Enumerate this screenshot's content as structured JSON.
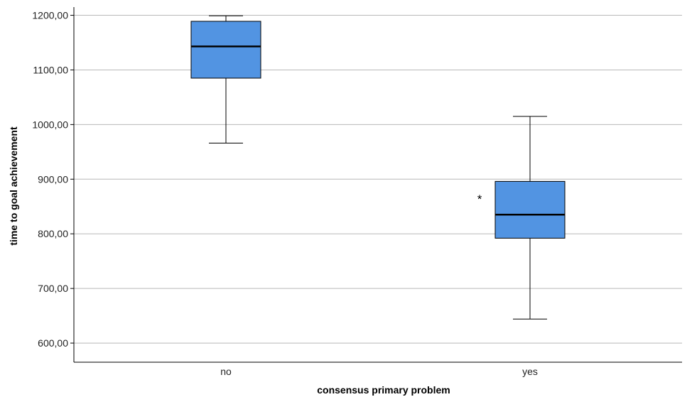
{
  "chart_data": {
    "type": "boxplot",
    "title": "",
    "xlabel": "consensus primary problem",
    "ylabel": "time to goal achievement",
    "ylim": [
      565,
      1215
    ],
    "yticks": [
      600,
      700,
      800,
      900,
      1000,
      1100,
      1200
    ],
    "ytick_labels": [
      "600,00",
      "700,00",
      "800,00",
      "900,00",
      "1000,00",
      "1100,00",
      "1200,00"
    ],
    "categories": [
      "no",
      "yes"
    ],
    "grid": "horizontal",
    "box_color": "#5294e2",
    "boxes": [
      {
        "category": "no",
        "whisker_low": 966,
        "q1": 1085,
        "median": 1143,
        "q3": 1189,
        "whisker_high": 1199,
        "outliers": []
      },
      {
        "category": "yes",
        "whisker_low": 644,
        "q1": 792,
        "median": 835,
        "q3": 896,
        "whisker_high": 1015,
        "outliers": [
          {
            "value": 872,
            "marker": "*"
          }
        ]
      }
    ]
  }
}
